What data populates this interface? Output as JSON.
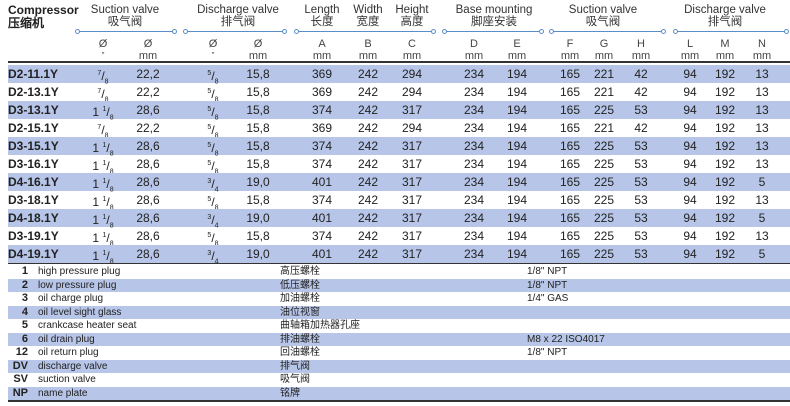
{
  "header": {
    "compressor_en": "Compressor",
    "compressor_zh": "压缩机",
    "groups": [
      {
        "en": "Suction valve",
        "zh": "吸气阀"
      },
      {
        "en": "Discharge valve",
        "zh": "排气阀"
      },
      {
        "en": "Length",
        "zh": "长度"
      },
      {
        "en": "Width",
        "zh": "宽度"
      },
      {
        "en": "Height",
        "zh": "高度"
      },
      {
        "en": "Base mounting",
        "zh": "脚座安装"
      },
      {
        "en": "Suction valve",
        "zh": "吸气阀"
      },
      {
        "en": "Discharge valve",
        "zh": "排气阀"
      }
    ],
    "subcols": [
      {
        "top": "Ø",
        "unit": "\""
      },
      {
        "top": "Ø",
        "unit": "mm"
      },
      {
        "top": "Ø",
        "unit": "\""
      },
      {
        "top": "Ø",
        "unit": "mm"
      },
      {
        "top": "A",
        "unit": "mm"
      },
      {
        "top": "B",
        "unit": "mm"
      },
      {
        "top": "C",
        "unit": "mm"
      },
      {
        "top": "D",
        "unit": "mm"
      },
      {
        "top": "E",
        "unit": "mm"
      },
      {
        "top": "F",
        "unit": "mm"
      },
      {
        "top": "G",
        "unit": "mm"
      },
      {
        "top": "H",
        "unit": "mm"
      },
      {
        "top": "L",
        "unit": "mm"
      },
      {
        "top": "M",
        "unit": "mm"
      },
      {
        "top": "N",
        "unit": "mm"
      }
    ]
  },
  "rows": [
    {
      "model": "D2-11.1Y",
      "sv_in": {
        "whole": "",
        "num": "7",
        "den": "8"
      },
      "sv_mm": "22,2",
      "dv_in": {
        "whole": "",
        "num": "5",
        "den": "8"
      },
      "dv_mm": "15,8",
      "A": "369",
      "B": "242",
      "C": "294",
      "D": "234",
      "E": "194",
      "F": "165",
      "G": "221",
      "H": "42",
      "L": "94",
      "M": "192",
      "N": "13"
    },
    {
      "model": "D2-13.1Y",
      "sv_in": {
        "whole": "",
        "num": "7",
        "den": "8"
      },
      "sv_mm": "22,2",
      "dv_in": {
        "whole": "",
        "num": "5",
        "den": "8"
      },
      "dv_mm": "15,8",
      "A": "369",
      "B": "242",
      "C": "294",
      "D": "234",
      "E": "194",
      "F": "165",
      "G": "221",
      "H": "42",
      "L": "94",
      "M": "192",
      "N": "13"
    },
    {
      "model": "D3-13.1Y",
      "sv_in": {
        "whole": "1",
        "num": "1",
        "den": "8"
      },
      "sv_mm": "28,6",
      "dv_in": {
        "whole": "",
        "num": "5",
        "den": "8"
      },
      "dv_mm": "15,8",
      "A": "374",
      "B": "242",
      "C": "317",
      "D": "234",
      "E": "194",
      "F": "165",
      "G": "225",
      "H": "53",
      "L": "94",
      "M": "192",
      "N": "13"
    },
    {
      "model": "D2-15.1Y",
      "sv_in": {
        "whole": "",
        "num": "7",
        "den": "8"
      },
      "sv_mm": "22,2",
      "dv_in": {
        "whole": "",
        "num": "5",
        "den": "8"
      },
      "dv_mm": "15,8",
      "A": "369",
      "B": "242",
      "C": "294",
      "D": "234",
      "E": "194",
      "F": "165",
      "G": "221",
      "H": "42",
      "L": "94",
      "M": "192",
      "N": "13"
    },
    {
      "model": "D3-15.1Y",
      "sv_in": {
        "whole": "1",
        "num": "1",
        "den": "8"
      },
      "sv_mm": "28,6",
      "dv_in": {
        "whole": "",
        "num": "5",
        "den": "8"
      },
      "dv_mm": "15,8",
      "A": "374",
      "B": "242",
      "C": "317",
      "D": "234",
      "E": "194",
      "F": "165",
      "G": "225",
      "H": "53",
      "L": "94",
      "M": "192",
      "N": "13"
    },
    {
      "model": "D3-16.1Y",
      "sv_in": {
        "whole": "1",
        "num": "1",
        "den": "8"
      },
      "sv_mm": "28,6",
      "dv_in": {
        "whole": "",
        "num": "5",
        "den": "8"
      },
      "dv_mm": "15,8",
      "A": "374",
      "B": "242",
      "C": "317",
      "D": "234",
      "E": "194",
      "F": "165",
      "G": "225",
      "H": "53",
      "L": "94",
      "M": "192",
      "N": "13"
    },
    {
      "model": "D4-16.1Y",
      "sv_in": {
        "whole": "1",
        "num": "1",
        "den": "8"
      },
      "sv_mm": "28,6",
      "dv_in": {
        "whole": "",
        "num": "3",
        "den": "4"
      },
      "dv_mm": "19,0",
      "A": "401",
      "B": "242",
      "C": "317",
      "D": "234",
      "E": "194",
      "F": "165",
      "G": "225",
      "H": "53",
      "L": "94",
      "M": "192",
      "N": "5"
    },
    {
      "model": "D3-18.1Y",
      "sv_in": {
        "whole": "1",
        "num": "1",
        "den": "8"
      },
      "sv_mm": "28,6",
      "dv_in": {
        "whole": "",
        "num": "5",
        "den": "8"
      },
      "dv_mm": "15,8",
      "A": "374",
      "B": "242",
      "C": "317",
      "D": "234",
      "E": "194",
      "F": "165",
      "G": "225",
      "H": "53",
      "L": "94",
      "M": "192",
      "N": "13"
    },
    {
      "model": "D4-18.1Y",
      "sv_in": {
        "whole": "1",
        "num": "1",
        "den": "8"
      },
      "sv_mm": "28,6",
      "dv_in": {
        "whole": "",
        "num": "3",
        "den": "4"
      },
      "dv_mm": "19,0",
      "A": "401",
      "B": "242",
      "C": "317",
      "D": "234",
      "E": "194",
      "F": "165",
      "G": "225",
      "H": "53",
      "L": "94",
      "M": "192",
      "N": "5"
    },
    {
      "model": "D3-19.1Y",
      "sv_in": {
        "whole": "1",
        "num": "1",
        "den": "8"
      },
      "sv_mm": "28,6",
      "dv_in": {
        "whole": "",
        "num": "5",
        "den": "8"
      },
      "dv_mm": "15,8",
      "A": "374",
      "B": "242",
      "C": "317",
      "D": "234",
      "E": "194",
      "F": "165",
      "G": "225",
      "H": "53",
      "L": "94",
      "M": "192",
      "N": "13"
    },
    {
      "model": "D4-19.1Y",
      "sv_in": {
        "whole": "1",
        "num": "1",
        "den": "8"
      },
      "sv_mm": "28,6",
      "dv_in": {
        "whole": "",
        "num": "3",
        "den": "4"
      },
      "dv_mm": "19,0",
      "A": "401",
      "B": "242",
      "C": "317",
      "D": "234",
      "E": "194",
      "F": "165",
      "G": "225",
      "H": "53",
      "L": "94",
      "M": "192",
      "N": "5"
    }
  ],
  "legend": [
    {
      "id": "1",
      "en": "high pressure plug",
      "zh": "高压螺栓",
      "spec": "1/8\" NPT"
    },
    {
      "id": "2",
      "en": "low pressure plug",
      "zh": "低压螺栓",
      "spec": "1/8\" NPT"
    },
    {
      "id": "3",
      "en": "oil charge plug",
      "zh": "加油螺栓",
      "spec": "1/4\" GAS"
    },
    {
      "id": "4",
      "en": "oil level sight glass",
      "zh": "油位视窗",
      "spec": ""
    },
    {
      "id": "5",
      "en": "crankcase heater seat",
      "zh": "曲轴箱加热器孔座",
      "spec": ""
    },
    {
      "id": "6",
      "en": "oil drain plug",
      "zh": "排油螺栓",
      "spec": "M8 x 22 ISO4017"
    },
    {
      "id": "12",
      "en": "oil return plug",
      "zh": "回油螺栓",
      "spec": "1/8\" NPT"
    },
    {
      "id": "DV",
      "en": "discharge valve",
      "zh": "排气阀",
      "spec": ""
    },
    {
      "id": "SV",
      "en": "suction valve",
      "zh": "吸气阀",
      "spec": ""
    },
    {
      "id": "NP",
      "en": "name plate",
      "zh": "铭牌",
      "spec": ""
    }
  ],
  "colors": {
    "row_shade": "#b7c5e8",
    "group_line": "#5b8ec9"
  }
}
